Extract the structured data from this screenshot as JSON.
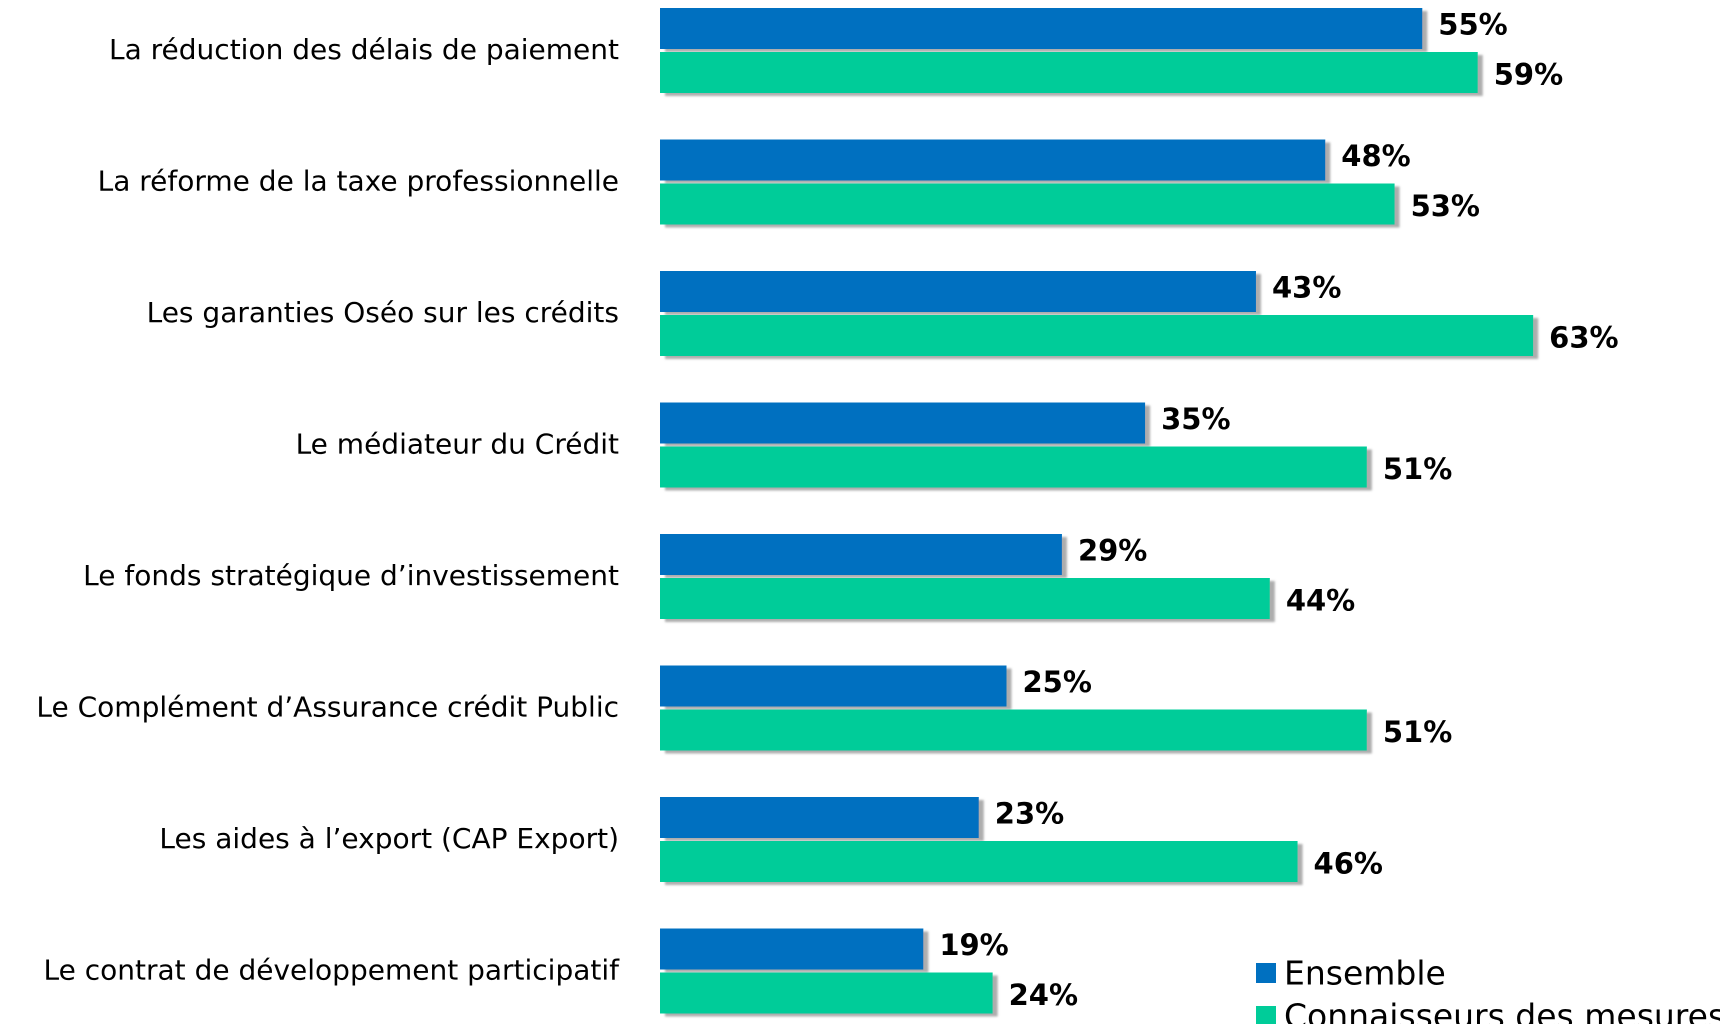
{
  "chart_data": {
    "type": "bar",
    "orientation": "horizontal",
    "categories": [
      "La réduction des délais de paiement",
      "La réforme de la taxe professionnelle",
      "Les garanties Oséo sur les crédits",
      "Le médiateur du Crédit",
      "Le fonds stratégique d’investissement",
      "Le Complément d’Assurance crédit Public",
      "Les aides à l’export (CAP Export)",
      "Le contrat de développement participatif"
    ],
    "series": [
      {
        "name": "Ensemble",
        "color": "#0070c0",
        "values": [
          55,
          48,
          43,
          35,
          29,
          25,
          23,
          19
        ],
        "value_labels": [
          "55%",
          "48%",
          "43%",
          "35%",
          "29%",
          "25%",
          "23%",
          "19%"
        ]
      },
      {
        "name": "Connaisseurs des mesures",
        "color": "#00cc99",
        "values": [
          59,
          53,
          63,
          51,
          44,
          51,
          46,
          24
        ],
        "value_labels": [
          "59%",
          "53%",
          "63%",
          "51%",
          "44%",
          "51%",
          "46%",
          "24%"
        ]
      }
    ],
    "legend": "bottom-right"
  }
}
